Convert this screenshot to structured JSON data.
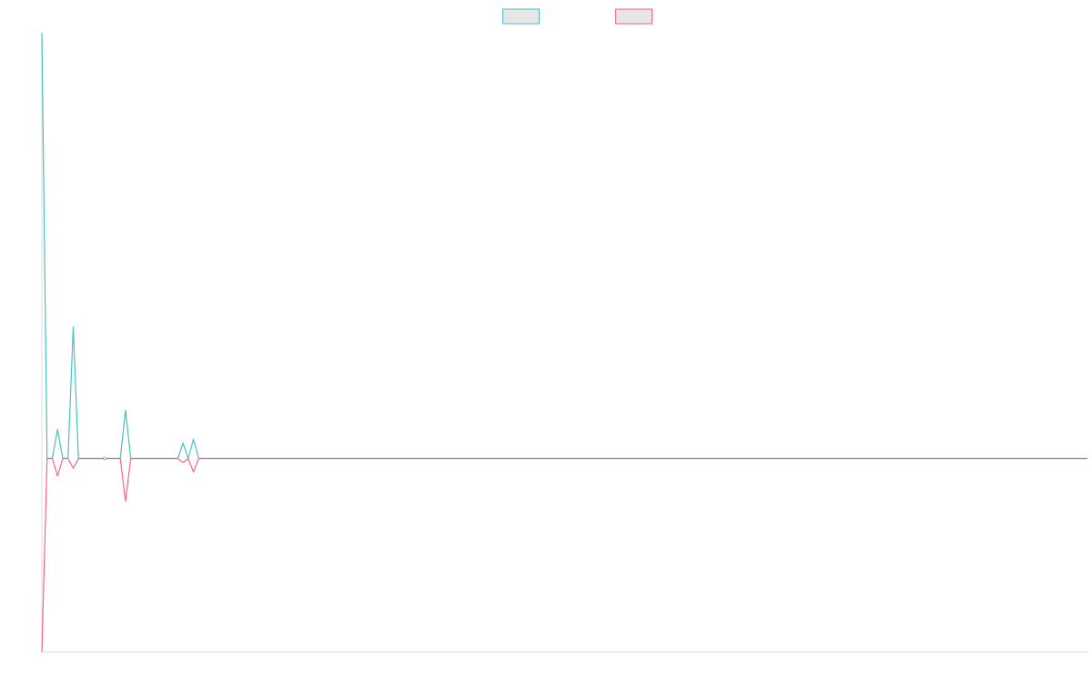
{
  "chart_data": {
    "type": "line",
    "title": "",
    "xlabel": "",
    "ylabel": "",
    "grid": false,
    "legend": "top-center",
    "xlim": [
      0,
      200
    ],
    "ylim": [
      -1,
      2.2
    ],
    "x": [
      0,
      1,
      2,
      3,
      4,
      5,
      6,
      7,
      8,
      9,
      10,
      11,
      12,
      13,
      14,
      15,
      16,
      17,
      18,
      19,
      20,
      21,
      22,
      23,
      24,
      25,
      26,
      27,
      28,
      29,
      30,
      31,
      32,
      33,
      34,
      35,
      36,
      37,
      38,
      39,
      40,
      200
    ],
    "series": [
      {
        "name": "",
        "color": "#4bc0c0",
        "values": [
          2.2,
          0,
          0,
          0.15,
          0,
          0,
          0.68,
          0,
          0,
          0,
          0,
          0,
          0,
          0,
          0,
          0,
          0.25,
          0,
          0,
          0,
          0,
          0,
          0,
          0,
          0,
          0,
          0,
          0.08,
          0,
          0.1,
          0,
          0,
          0,
          0,
          0,
          0,
          0,
          0,
          0,
          0,
          0,
          0
        ]
      },
      {
        "name": "",
        "color": "#ff6384",
        "values": [
          -1,
          0,
          0,
          -0.09,
          0,
          0,
          -0.05,
          0,
          0,
          0,
          0,
          0,
          0,
          0,
          0,
          0,
          -0.22,
          0,
          0,
          0,
          0,
          0,
          0,
          0,
          0,
          0,
          0,
          -0.02,
          0,
          -0.07,
          0,
          0,
          0,
          0,
          0,
          0,
          0,
          0,
          0,
          0,
          0,
          0
        ]
      }
    ]
  }
}
